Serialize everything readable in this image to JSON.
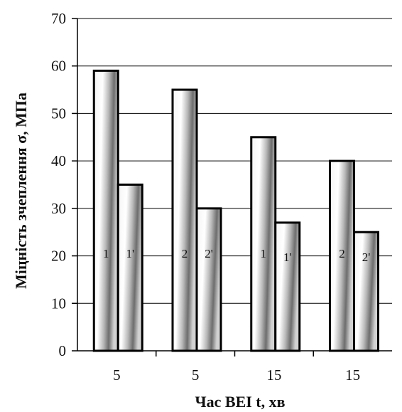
{
  "chart_data": {
    "type": "bar",
    "ylabel": "Міцність зчеплення σ, МПа",
    "xlabel": "Час ВЕІ t, хв",
    "ylim": [
      0,
      70
    ],
    "yticks": [
      0,
      10,
      20,
      30,
      40,
      50,
      60,
      70
    ],
    "grid": true,
    "categories": [
      "5",
      "5",
      "15",
      "15"
    ],
    "series": [
      {
        "values": [
          59,
          55,
          45,
          40
        ],
        "bar_labels": [
          "1",
          "2",
          "1",
          "2"
        ]
      },
      {
        "values": [
          35,
          30,
          27,
          25
        ],
        "bar_labels": [
          "1'",
          "2'",
          "1'",
          "2'"
        ]
      }
    ]
  }
}
